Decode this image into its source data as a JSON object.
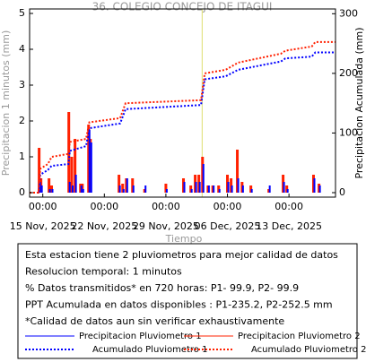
{
  "chart_data": {
    "type": "bar",
    "title": "36. COLEGIO CONCEJO DE ITAGUI",
    "xlabel": "Tiempo",
    "ylabel": "Precipitacion 1 minutos (mm)",
    "y2label": "Precipitacion Acumulada (mm)",
    "xlim": [
      "2025-11-13 12:00",
      "2025-12-18 07:00"
    ],
    "xticks": [
      {
        "value": "2025-11-15 00:00",
        "label": "00:00",
        "date_label": "15 Nov, 2025"
      },
      {
        "value": "2025-11-22 00:00",
        "label": "00:00",
        "date_label": "22 Nov, 2025"
      },
      {
        "value": "2025-11-29 00:00",
        "label": "00:00",
        "date_label": "29 Nov, 2025"
      },
      {
        "value": "2025-12-06 00:00",
        "label": "00:00",
        "date_label": "06 Dec, 2025"
      },
      {
        "value": "2025-12-13 00:00",
        "label": "00:00",
        "date_label": "13 Dec, 2025"
      }
    ],
    "ylim": [
      -0.125,
      5.125
    ],
    "yticks": [
      0,
      1,
      2,
      3,
      4,
      5
    ],
    "y2lim": [
      -7.5,
      308
    ],
    "y2ticks": [
      0,
      100,
      200,
      300
    ],
    "vline": "2025-12-03 03:00",
    "vline_color": "#e0e070",
    "series": [
      {
        "name": "Precipitacion Pluviometro 1",
        "type": "bar",
        "color": "#0000ff",
        "x": [
          "2025-11-14 14:00",
          "2025-11-14 19:00",
          "2025-11-15 17:00",
          "2025-11-16 00:00",
          "2025-11-17 23:00",
          "2025-11-18 07:00",
          "2025-11-18 16:00",
          "2025-11-19 07:00",
          "2025-11-19 12:00",
          "2025-11-20 05:00",
          "2025-11-20 10:00",
          "2025-11-23 16:00",
          "2025-11-24 02:00",
          "2025-11-24 12:00",
          "2025-11-25 05:00",
          "2025-11-26 14:00",
          "2025-11-29 00:00",
          "2025-12-01 00:00",
          "2025-12-01 20:00",
          "2025-12-02 08:00",
          "2025-12-02 18:00",
          "2025-12-03 04:00",
          "2025-12-03 19:00",
          "2025-12-04 08:00",
          "2025-12-05 00:00",
          "2025-12-06 00:00",
          "2025-12-06 10:00",
          "2025-12-07 03:00",
          "2025-12-07 16:00",
          "2025-12-08 16:00",
          "2025-12-10 17:00",
          "2025-12-12 08:00",
          "2025-12-12 18:00",
          "2025-12-15 19:00",
          "2025-12-16 10:00"
        ],
        "values": [
          0.3,
          0.2,
          0.1,
          0.1,
          0.3,
          0.2,
          0.5,
          0.2,
          0.1,
          1.75,
          1.4,
          0.2,
          0.1,
          0.4,
          0.2,
          0.2,
          0.1,
          0.3,
          0.1,
          0.3,
          0.3,
          0.8,
          0.2,
          0.2,
          0.1,
          0.3,
          0.2,
          0.4,
          0.2,
          0.1,
          0.2,
          0.3,
          0.1,
          0.4,
          0.2
        ]
      },
      {
        "name": "Precipitacion Pluviometro 2",
        "type": "bar",
        "color": "#ff2000",
        "x": [
          "2025-11-14 14:00",
          "2025-11-14 19:00",
          "2025-11-15 17:00",
          "2025-11-16 00:00",
          "2025-11-17 23:00",
          "2025-11-18 07:00",
          "2025-11-18 16:00",
          "2025-11-19 07:00",
          "2025-11-19 12:00",
          "2025-11-20 05:00",
          "2025-11-20 10:00",
          "2025-11-23 16:00",
          "2025-11-24 02:00",
          "2025-11-24 12:00",
          "2025-11-25 05:00",
          "2025-11-26 14:00",
          "2025-11-29 00:00",
          "2025-12-01 00:00",
          "2025-12-01 20:00",
          "2025-12-02 08:00",
          "2025-12-02 18:00",
          "2025-12-03 04:00",
          "2025-12-03 19:00",
          "2025-12-04 08:00",
          "2025-12-05 00:00",
          "2025-12-06 00:00",
          "2025-12-06 10:00",
          "2025-12-07 03:00",
          "2025-12-07 16:00",
          "2025-12-08 16:00",
          "2025-12-10 17:00",
          "2025-12-12 08:00",
          "2025-12-12 18:00",
          "2025-12-15 19:00",
          "2025-12-16 10:00"
        ],
        "values": [
          1.25,
          0.4,
          0.4,
          0.2,
          2.25,
          1.0,
          1.5,
          0.25,
          0.25,
          1.9,
          1.5,
          0.5,
          0.25,
          0.4,
          0.4,
          0.1,
          0.25,
          0.4,
          0.2,
          0.5,
          0.5,
          1.0,
          0.2,
          0.2,
          0.2,
          0.5,
          0.4,
          1.2,
          0.3,
          0.2,
          0.1,
          0.5,
          0.2,
          0.5,
          0.25
        ]
      },
      {
        "name": "Acumulado Pluviometro 1",
        "type": "line",
        "axis": "y2",
        "color": "#0000ff",
        "x": [
          "2025-11-13 12:00",
          "2025-11-14 12:00",
          "2025-11-14 17:00",
          "2025-11-15 14:00",
          "2025-11-16 00:00",
          "2025-11-17 22:00",
          "2025-11-18 02:00",
          "2025-11-19 22:00",
          "2025-11-20 07:00",
          "2025-11-23 19:00",
          "2025-11-24 10:00",
          "2025-12-03 00:00",
          "2025-12-03 10:00",
          "2025-12-05 19:00",
          "2025-12-07 05:00",
          "2025-12-12 02:00",
          "2025-12-12 14:00",
          "2025-12-15 14:00",
          "2025-12-16 00:00",
          "2025-12-18 07:00"
        ],
        "values": [
          0,
          0,
          30,
          38,
          45,
          48,
          70,
          78,
          108,
          116,
          140,
          147,
          190,
          195,
          206,
          220,
          225,
          228,
          235.2,
          235.2
        ]
      },
      {
        "name": "Acumulado Pluviometro 2",
        "type": "line",
        "axis": "y2",
        "color": "#ff2000",
        "x": [
          "2025-11-13 12:00",
          "2025-11-14 12:00",
          "2025-11-14 17:00",
          "2025-11-15 14:00",
          "2025-11-16 00:00",
          "2025-11-17 22:00",
          "2025-11-18 02:00",
          "2025-11-19 22:00",
          "2025-11-20 07:00",
          "2025-11-23 19:00",
          "2025-11-24 10:00",
          "2025-12-03 00:00",
          "2025-12-03 10:00",
          "2025-12-05 19:00",
          "2025-12-07 05:00",
          "2025-12-12 02:00",
          "2025-12-12 14:00",
          "2025-12-15 14:00",
          "2025-12-16 00:00",
          "2025-12-18 07:00"
        ],
        "values": [
          0,
          0,
          40,
          48,
          60,
          65,
          85,
          90,
          118,
          125,
          150,
          155,
          200,
          206,
          218,
          233,
          238,
          245,
          252.5,
          252.5
        ]
      }
    ],
    "notes": [
      "Esta estacion tiene 2 pluviometros para mejor calidad de datos",
      "Resolucion temporal: 1 minutos",
      "% Datos transmitidos* en 720 horas: P1- 99.9, P2- 99.9",
      "PPT Acumulada en datos disponibles : P1-235.2, P2-252.5 mm",
      "*Calidad de datos aun sin verificar exhaustivamente"
    ]
  }
}
